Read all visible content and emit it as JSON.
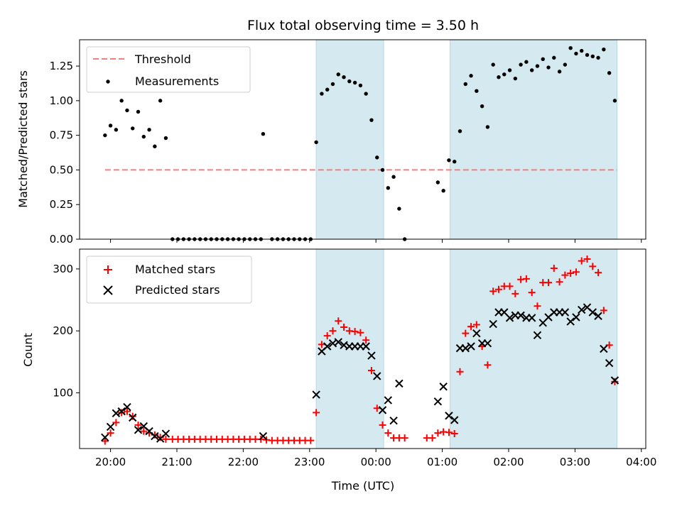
{
  "chart_data": [
    {
      "type": "scatter",
      "title": "Flux total observing time = 3.50 h",
      "xlabel": "",
      "ylabel": "Matched/Predicted stars",
      "xlim": [
        "19:32",
        "04:04"
      ],
      "ylim": [
        0.0,
        1.44
      ],
      "yticks": [
        0.0,
        0.25,
        0.5,
        0.75,
        1.0,
        1.25
      ],
      "ytick_labels": [
        "0.00",
        "0.25",
        "0.50",
        "0.75",
        "1.00",
        "1.25"
      ],
      "grid": false,
      "legend_position": "upper-left",
      "shaded_regions": [
        {
          "start": "23:06",
          "end": "00:07",
          "color": "#d4eaf0"
        },
        {
          "start": "01:07",
          "end": "03:38",
          "color": "#d4eaf0"
        }
      ],
      "threshold": {
        "name": "Threshold",
        "value": 0.5,
        "start": "19:55",
        "end": "03:38",
        "color": "#f08080",
        "style": "dashed"
      },
      "series": [
        {
          "name": "Measurements",
          "color": "#000000",
          "marker": "dot",
          "points": [
            [
              "19:55",
              0.75
            ],
            [
              "20:00",
              0.82
            ],
            [
              "20:05",
              0.79
            ],
            [
              "20:10",
              1.0
            ],
            [
              "20:15",
              0.93
            ],
            [
              "20:20",
              0.8
            ],
            [
              "20:25",
              0.92
            ],
            [
              "20:30",
              0.74
            ],
            [
              "20:35",
              0.79
            ],
            [
              "20:40",
              0.67
            ],
            [
              "20:45",
              1.0
            ],
            [
              "20:50",
              0.73
            ],
            [
              "20:56",
              0.0
            ],
            [
              "21:01",
              0.0
            ],
            [
              "21:06",
              0.0
            ],
            [
              "21:11",
              0.0
            ],
            [
              "21:16",
              0.0
            ],
            [
              "21:21",
              0.0
            ],
            [
              "21:26",
              0.0
            ],
            [
              "21:31",
              0.0
            ],
            [
              "21:36",
              0.0
            ],
            [
              "21:41",
              0.0
            ],
            [
              "21:46",
              0.0
            ],
            [
              "21:51",
              0.0
            ],
            [
              "21:56",
              0.0
            ],
            [
              "22:01",
              0.0
            ],
            [
              "22:06",
              0.0
            ],
            [
              "22:11",
              0.0
            ],
            [
              "22:16",
              0.0
            ],
            [
              "22:18",
              0.76
            ],
            [
              "22:26",
              0.0
            ],
            [
              "22:31",
              0.0
            ],
            [
              "22:36",
              0.0
            ],
            [
              "22:41",
              0.0
            ],
            [
              "22:46",
              0.0
            ],
            [
              "22:51",
              0.0
            ],
            [
              "22:56",
              0.0
            ],
            [
              "23:01",
              0.0
            ],
            [
              "23:06",
              0.7
            ],
            [
              "23:11",
              1.05
            ],
            [
              "23:16",
              1.08
            ],
            [
              "23:21",
              1.12
            ],
            [
              "23:26",
              1.19
            ],
            [
              "23:31",
              1.17
            ],
            [
              "23:36",
              1.14
            ],
            [
              "23:41",
              1.13
            ],
            [
              "23:46",
              1.11
            ],
            [
              "23:51",
              1.05
            ],
            [
              "23:56",
              0.86
            ],
            [
              "00:01",
              0.59
            ],
            [
              "00:06",
              0.5
            ],
            [
              "00:11",
              0.37
            ],
            [
              "00:16",
              0.45
            ],
            [
              "00:21",
              0.22
            ],
            [
              "00:26",
              0.0
            ],
            [
              "00:56",
              0.41
            ],
            [
              "01:01",
              0.35
            ],
            [
              "01:06",
              0.57
            ],
            [
              "01:11",
              0.56
            ],
            [
              "01:16",
              0.78
            ],
            [
              "01:21",
              1.12
            ],
            [
              "01:26",
              1.18
            ],
            [
              "01:31",
              1.07
            ],
            [
              "01:36",
              0.96
            ],
            [
              "01:41",
              0.81
            ],
            [
              "01:46",
              1.26
            ],
            [
              "01:51",
              1.17
            ],
            [
              "01:56",
              1.19
            ],
            [
              "02:01",
              1.22
            ],
            [
              "02:06",
              1.16
            ],
            [
              "02:11",
              1.26
            ],
            [
              "02:16",
              1.28
            ],
            [
              "02:21",
              1.22
            ],
            [
              "02:26",
              1.25
            ],
            [
              "02:31",
              1.3
            ],
            [
              "02:36",
              1.24
            ],
            [
              "02:41",
              1.31
            ],
            [
              "02:46",
              1.21
            ],
            [
              "02:51",
              1.26
            ],
            [
              "02:56",
              1.38
            ],
            [
              "03:01",
              1.34
            ],
            [
              "03:06",
              1.36
            ],
            [
              "03:11",
              1.33
            ],
            [
              "03:16",
              1.32
            ],
            [
              "03:21",
              1.31
            ],
            [
              "03:26",
              1.37
            ],
            [
              "03:31",
              1.2
            ],
            [
              "03:36",
              1.0
            ]
          ]
        }
      ]
    },
    {
      "type": "scatter",
      "title": "",
      "xlabel": "Time (UTC)",
      "ylabel": "Count",
      "xlim": [
        "19:32",
        "04:04"
      ],
      "ylim": [
        10,
        332
      ],
      "yticks": [
        100,
        200,
        300
      ],
      "ytick_labels": [
        "100",
        "200",
        "300"
      ],
      "xticks": [
        "20:00",
        "21:00",
        "22:00",
        "23:00",
        "00:00",
        "01:00",
        "02:00",
        "03:00",
        "04:00"
      ],
      "grid": false,
      "legend_position": "upper-left",
      "shaded_regions": [
        {
          "start": "23:06",
          "end": "00:07",
          "color": "#d4eaf0"
        },
        {
          "start": "01:07",
          "end": "03:38",
          "color": "#d4eaf0"
        }
      ],
      "series": [
        {
          "name": "Matched stars",
          "color": "#ff0000",
          "marker": "plus",
          "points": [
            [
              "19:55",
              22
            ],
            [
              "20:00",
              35
            ],
            [
              "20:05",
              52
            ],
            [
              "20:10",
              68
            ],
            [
              "20:15",
              70
            ],
            [
              "20:20",
              62
            ],
            [
              "20:25",
              48
            ],
            [
              "20:30",
              38
            ],
            [
              "20:35",
              35
            ],
            [
              "20:40",
              32
            ],
            [
              "20:45",
              28
            ],
            [
              "20:50",
              25
            ],
            [
              "20:56",
              25
            ],
            [
              "21:01",
              25
            ],
            [
              "21:06",
              25
            ],
            [
              "21:11",
              25
            ],
            [
              "21:16",
              25
            ],
            [
              "21:21",
              25
            ],
            [
              "21:26",
              25
            ],
            [
              "21:31",
              25
            ],
            [
              "21:36",
              25
            ],
            [
              "21:41",
              25
            ],
            [
              "21:46",
              25
            ],
            [
              "21:51",
              25
            ],
            [
              "21:56",
              25
            ],
            [
              "22:01",
              25
            ],
            [
              "22:06",
              25
            ],
            [
              "22:11",
              25
            ],
            [
              "22:16",
              25
            ],
            [
              "22:21",
              24
            ],
            [
              "22:26",
              23
            ],
            [
              "22:31",
              23
            ],
            [
              "22:36",
              23
            ],
            [
              "22:41",
              23
            ],
            [
              "22:46",
              23
            ],
            [
              "22:51",
              23
            ],
            [
              "22:56",
              23
            ],
            [
              "23:01",
              23
            ],
            [
              "23:06",
              68
            ],
            [
              "23:11",
              178
            ],
            [
              "23:16",
              192
            ],
            [
              "23:21",
              200
            ],
            [
              "23:26",
              216
            ],
            [
              "23:31",
              206
            ],
            [
              "23:36",
              200
            ],
            [
              "23:41",
              199
            ],
            [
              "23:46",
              197
            ],
            [
              "23:51",
              185
            ],
            [
              "23:56",
              136
            ],
            [
              "00:01",
              75
            ],
            [
              "00:06",
              48
            ],
            [
              "00:11",
              35
            ],
            [
              "00:16",
              27
            ],
            [
              "00:21",
              27
            ],
            [
              "00:26",
              27
            ],
            [
              "00:46",
              27
            ],
            [
              "00:51",
              27
            ],
            [
              "00:56",
              35
            ],
            [
              "01:01",
              37
            ],
            [
              "01:06",
              36
            ],
            [
              "01:11",
              34
            ],
            [
              "01:16",
              134
            ],
            [
              "01:21",
              196
            ],
            [
              "01:26",
              207
            ],
            [
              "01:31",
              210
            ],
            [
              "01:36",
              175
            ],
            [
              "01:41",
              145
            ],
            [
              "01:46",
              264
            ],
            [
              "01:51",
              267
            ],
            [
              "01:56",
              272
            ],
            [
              "02:01",
              272
            ],
            [
              "02:06",
              260
            ],
            [
              "02:11",
              283
            ],
            [
              "02:16",
              284
            ],
            [
              "02:21",
              262
            ],
            [
              "02:26",
              240
            ],
            [
              "02:31",
              278
            ],
            [
              "02:36",
              278
            ],
            [
              "02:41",
              301
            ],
            [
              "02:46",
              279
            ],
            [
              "02:51",
              290
            ],
            [
              "02:56",
              293
            ],
            [
              "03:01",
              295
            ],
            [
              "03:06",
              313
            ],
            [
              "03:11",
              316
            ],
            [
              "03:16",
              304
            ],
            [
              "03:21",
              294
            ],
            [
              "03:26",
              233
            ],
            [
              "03:31",
              177
            ],
            [
              "03:36",
              118
            ]
          ]
        },
        {
          "name": "Predicted stars",
          "color": "#000000",
          "marker": "x",
          "points": [
            [
              "19:55",
              28
            ],
            [
              "20:00",
              45
            ],
            [
              "20:05",
              67
            ],
            [
              "20:10",
              70
            ],
            [
              "20:15",
              77
            ],
            [
              "20:20",
              60
            ],
            [
              "20:25",
              40
            ],
            [
              "20:30",
              46
            ],
            [
              "20:35",
              38
            ],
            [
              "20:40",
              30
            ],
            [
              "20:45",
              26
            ],
            [
              "20:50",
              34
            ],
            [
              "22:18",
              30
            ],
            [
              "23:06",
              97
            ],
            [
              "23:11",
              167
            ],
            [
              "23:16",
              175
            ],
            [
              "23:21",
              180
            ],
            [
              "23:26",
              182
            ],
            [
              "23:31",
              177
            ],
            [
              "23:36",
              175
            ],
            [
              "23:41",
              175
            ],
            [
              "23:46",
              175
            ],
            [
              "23:51",
              175
            ],
            [
              "23:56",
              160
            ],
            [
              "00:01",
              127
            ],
            [
              "00:06",
              72
            ],
            [
              "00:11",
              88
            ],
            [
              "00:16",
              55
            ],
            [
              "00:21",
              115
            ],
            [
              "00:56",
              86
            ],
            [
              "01:01",
              110
            ],
            [
              "01:06",
              63
            ],
            [
              "01:11",
              56
            ],
            [
              "01:16",
              172
            ],
            [
              "01:21",
              172
            ],
            [
              "01:26",
              175
            ],
            [
              "01:31",
              196
            ],
            [
              "01:36",
              180
            ],
            [
              "01:41",
              180
            ],
            [
              "01:46",
              211
            ],
            [
              "01:51",
              230
            ],
            [
              "01:56",
              230
            ],
            [
              "02:01",
              221
            ],
            [
              "02:06",
              225
            ],
            [
              "02:11",
              225
            ],
            [
              "02:16",
              221
            ],
            [
              "02:21",
              221
            ],
            [
              "02:26",
              193
            ],
            [
              "02:31",
              213
            ],
            [
              "02:36",
              222
            ],
            [
              "02:41",
              230
            ],
            [
              "02:46",
              230
            ],
            [
              "02:51",
              230
            ],
            [
              "02:56",
              215
            ],
            [
              "03:01",
              222
            ],
            [
              "03:06",
              234
            ],
            [
              "03:11",
              238
            ],
            [
              "03:16",
              230
            ],
            [
              "03:21",
              224
            ],
            [
              "03:26",
              171
            ],
            [
              "03:31",
              148
            ],
            [
              "03:36",
              120
            ]
          ]
        }
      ]
    }
  ]
}
